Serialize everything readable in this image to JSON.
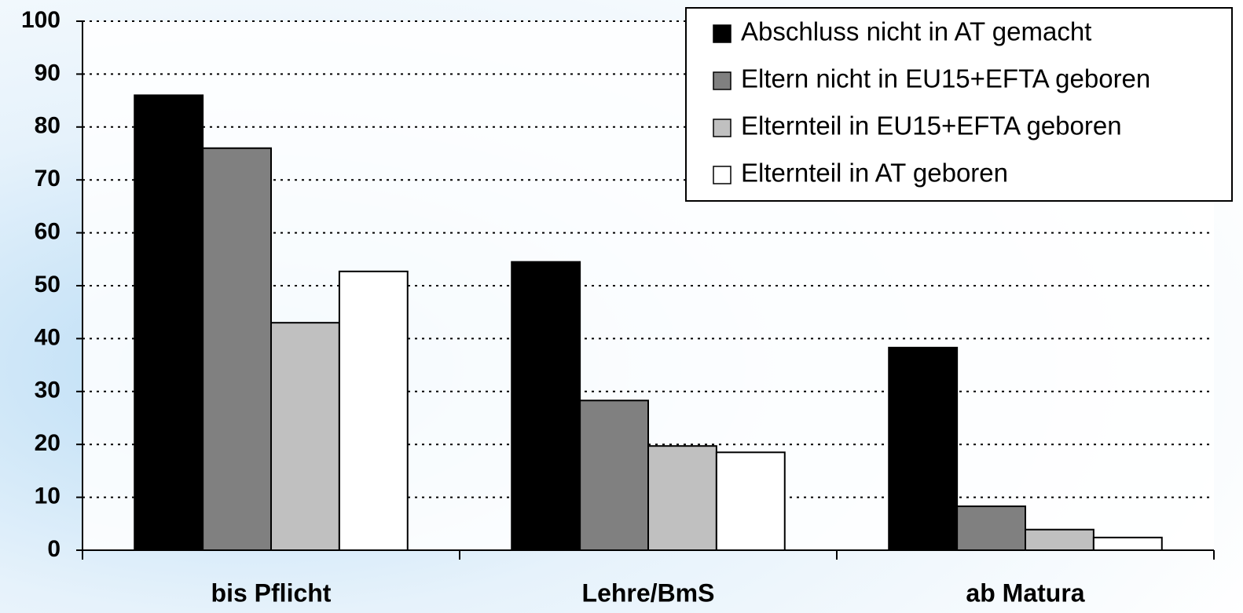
{
  "chart_data": {
    "type": "bar",
    "categories": [
      "bis Pflicht",
      "Lehre/BmS",
      "ab Matura"
    ],
    "series": [
      {
        "name": "Abschluss nicht in AT gemacht",
        "color": "#000000",
        "values": [
          86,
          54.5,
          38.3
        ]
      },
      {
        "name": "Eltern nicht in EU15+EFTA geboren",
        "color": "#808080",
        "values": [
          76,
          28.3,
          8.3
        ]
      },
      {
        "name": "Elternteil in EU15+EFTA geboren",
        "color": "#c0c0c0",
        "values": [
          43,
          19.7,
          3.9
        ]
      },
      {
        "name": "Elternteil in AT geboren",
        "color": "#ffffff",
        "values": [
          52.7,
          18.5,
          2.4
        ]
      }
    ],
    "ylim": [
      0,
      100
    ],
    "yticks": [
      0,
      10,
      20,
      30,
      40,
      50,
      60,
      70,
      80,
      90,
      100
    ],
    "grid": true,
    "legend": "top-right"
  }
}
